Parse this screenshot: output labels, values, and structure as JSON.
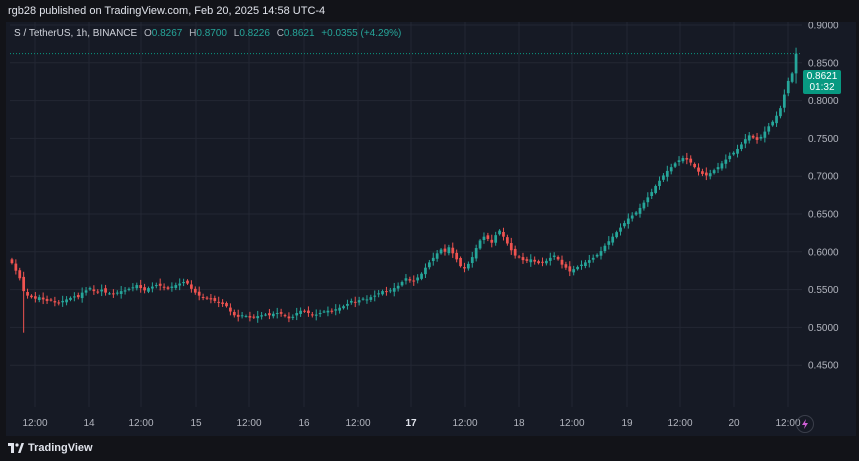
{
  "header": {
    "published_text": "rgb28 published on TradingView.com, Feb 20, 2025 14:58 UTC-4"
  },
  "symbol": {
    "name": "S / TetherUS, 1h, BINANCE",
    "o_label": "O",
    "o_value": "0.8267",
    "h_label": "H",
    "h_value": "0.8700",
    "l_label": "L",
    "l_value": "0.8226",
    "c_label": "C",
    "c_value": "0.8621",
    "change": "+0.0355 (+4.29%)"
  },
  "price_tag": {
    "price": "0.8621",
    "countdown": "01:32"
  },
  "footer": {
    "brand": "TradingView"
  },
  "colors": {
    "up": "#26a69a",
    "down": "#ef5350",
    "background": "#161a25",
    "grid": "#232733",
    "axis_text": "#b2b5be",
    "tag": "#089981"
  },
  "icons": {
    "logo": "tradingview-logo-icon",
    "bolt": "lightning-icon"
  },
  "chart_data": {
    "type": "candlestick",
    "interval": "1h",
    "ylim": [
      0.4,
      0.9
    ],
    "y_ticks": [
      "0.9000",
      "0.8500",
      "0.8000",
      "0.7500",
      "0.7000",
      "0.6500",
      "0.6000",
      "0.5500",
      "0.5000",
      "0.4500"
    ],
    "x_ticks": [
      "12:00",
      "14",
      "12:00",
      "15",
      "12:00",
      "16",
      "12:00",
      "17",
      "12:00",
      "18",
      "12:00",
      "19",
      "12:00",
      "20",
      "12:00"
    ],
    "grid": true,
    "last_price": 0.8621,
    "closes": [
      0.585,
      0.575,
      0.565,
      0.548,
      0.542,
      0.54,
      0.538,
      0.54,
      0.537,
      0.535,
      0.536,
      0.533,
      0.532,
      0.535,
      0.537,
      0.539,
      0.541,
      0.54,
      0.546,
      0.549,
      0.552,
      0.548,
      0.547,
      0.55,
      0.546,
      0.545,
      0.544,
      0.546,
      0.548,
      0.549,
      0.551,
      0.553,
      0.556,
      0.552,
      0.549,
      0.552,
      0.554,
      0.556,
      0.555,
      0.553,
      0.551,
      0.554,
      0.556,
      0.558,
      0.56,
      0.558,
      0.551,
      0.546,
      0.542,
      0.54,
      0.538,
      0.537,
      0.535,
      0.533,
      0.531,
      0.528,
      0.521,
      0.516,
      0.514,
      0.516,
      0.515,
      0.513,
      0.514,
      0.515,
      0.516,
      0.517,
      0.516,
      0.518,
      0.519,
      0.518,
      0.515,
      0.512,
      0.514,
      0.519,
      0.522,
      0.521,
      0.519,
      0.516,
      0.517,
      0.519,
      0.521,
      0.522,
      0.521,
      0.524,
      0.526,
      0.528,
      0.531,
      0.535,
      0.533,
      0.536,
      0.538,
      0.537,
      0.54,
      0.542,
      0.545,
      0.548,
      0.547,
      0.549,
      0.552,
      0.555,
      0.56,
      0.565,
      0.562,
      0.561,
      0.566,
      0.571,
      0.579,
      0.586,
      0.592,
      0.598,
      0.603,
      0.6,
      0.606,
      0.598,
      0.59,
      0.581,
      0.578,
      0.584,
      0.593,
      0.605,
      0.615,
      0.62,
      0.617,
      0.612,
      0.622,
      0.628,
      0.62,
      0.611,
      0.602,
      0.595,
      0.593,
      0.589,
      0.588,
      0.59,
      0.587,
      0.585,
      0.586,
      0.588,
      0.592,
      0.595,
      0.59,
      0.583,
      0.579,
      0.574,
      0.577,
      0.58,
      0.583,
      0.586,
      0.589,
      0.592,
      0.596,
      0.601,
      0.608,
      0.614,
      0.62,
      0.626,
      0.632,
      0.638,
      0.644,
      0.648,
      0.652,
      0.658,
      0.665,
      0.672,
      0.679,
      0.687,
      0.694,
      0.701,
      0.707,
      0.712,
      0.717,
      0.721,
      0.724,
      0.722,
      0.718,
      0.712,
      0.706,
      0.703,
      0.701,
      0.704,
      0.708,
      0.712,
      0.717,
      0.722,
      0.727,
      0.731,
      0.736,
      0.742,
      0.749,
      0.754,
      0.751,
      0.748,
      0.752,
      0.759,
      0.766,
      0.772,
      0.78,
      0.79,
      0.808,
      0.826,
      0.836,
      0.862
    ]
  }
}
